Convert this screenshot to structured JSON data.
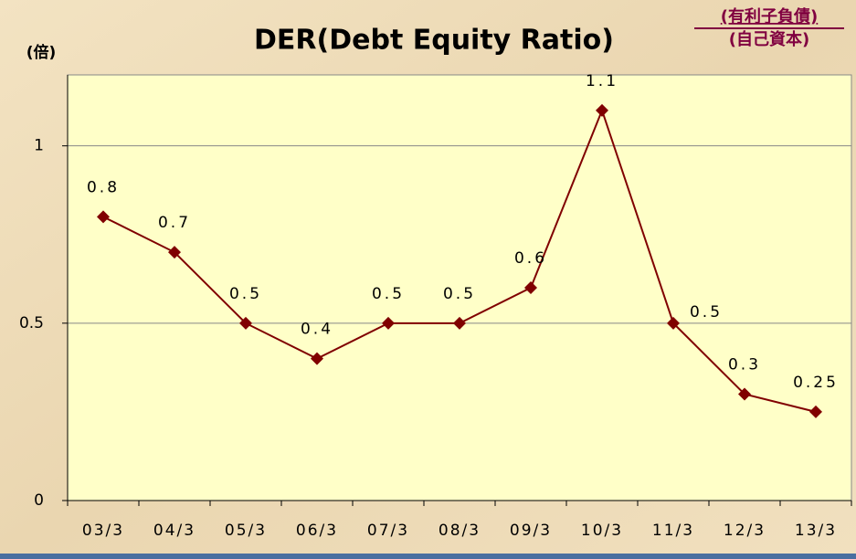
{
  "chart_data": {
    "type": "line",
    "title": "DER(Debt Equity Ratio)",
    "unit_label": "(倍)",
    "annotation": {
      "numerator": "(有利子負債)",
      "denominator": "(自己資本)"
    },
    "categories": [
      "03/3",
      "04/3",
      "05/3",
      "06/3",
      "07/3",
      "08/3",
      "09/3",
      "10/3",
      "11/3",
      "12/3",
      "13/3"
    ],
    "values": [
      0.8,
      0.7,
      0.5,
      0.4,
      0.5,
      0.5,
      0.6,
      1.1,
      0.5,
      0.3,
      0.25
    ],
    "color": "#800000",
    "ylim": [
      0,
      1.2
    ],
    "yticks": [
      0,
      0.5,
      1
    ],
    "grid": true
  }
}
